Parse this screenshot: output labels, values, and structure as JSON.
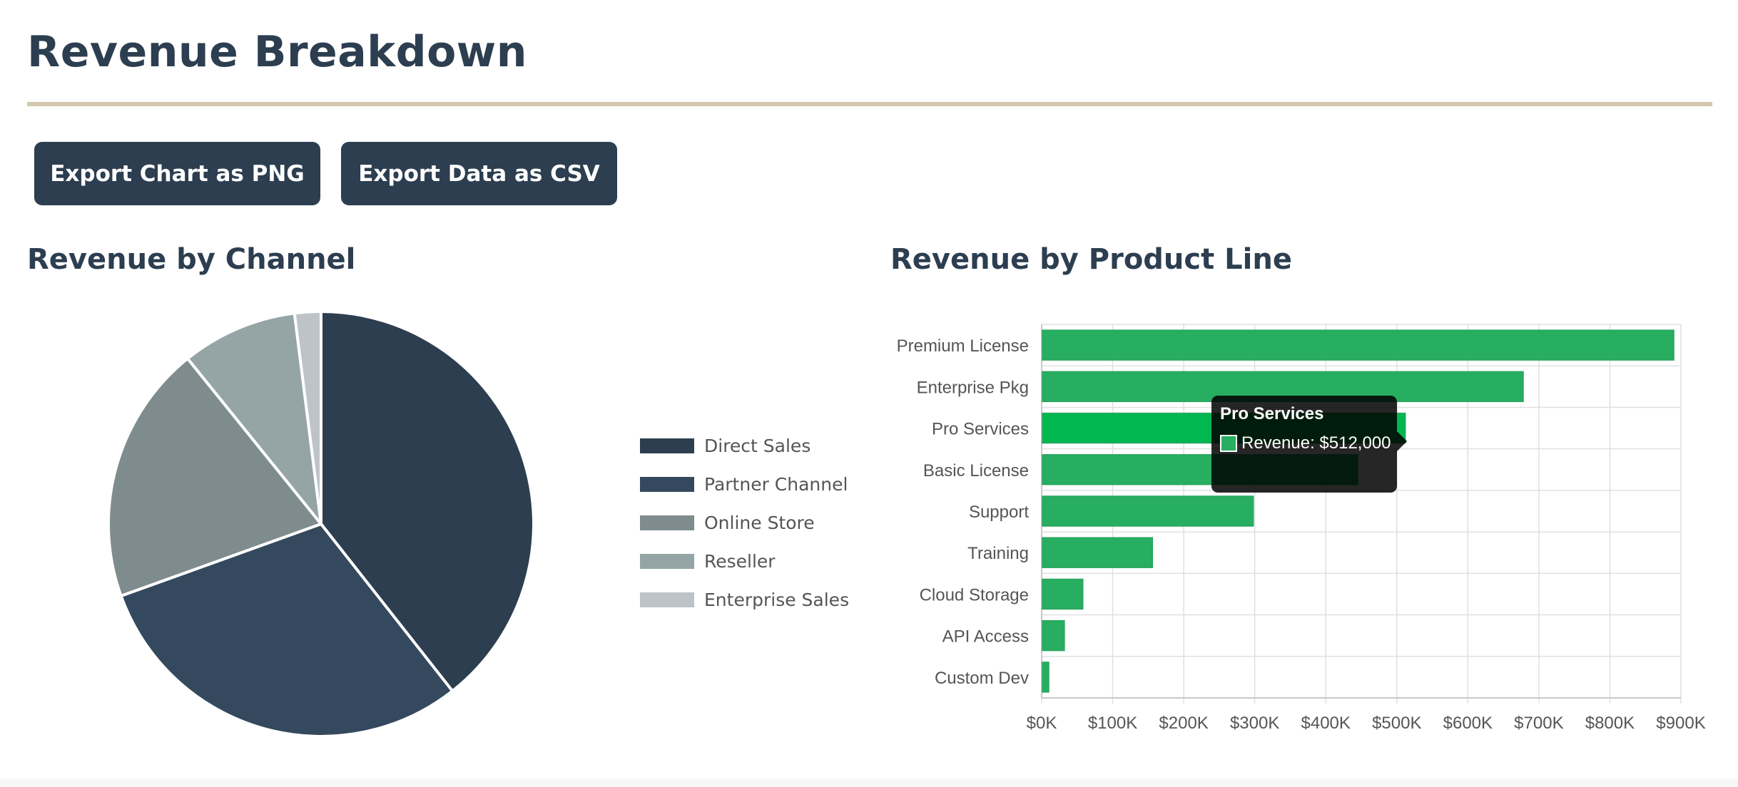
{
  "header": {
    "title": "Revenue Breakdown"
  },
  "toolbar": {
    "export_png_label": "Export Chart as PNG",
    "export_csv_label": "Export Data as CSV"
  },
  "colors": {
    "primary": "#2c3e50",
    "accent_rule": "#d4c8ae",
    "bar_green": "#27ae60",
    "bar_highlight": "#00b84f"
  },
  "chart_data": [
    {
      "type": "pie",
      "title": "Revenue by Channel",
      "categories": [
        "Direct Sales",
        "Partner Channel",
        "Online Store",
        "Reseller",
        "Enterprise Sales"
      ],
      "values": [
        39.4,
        30.1,
        19.7,
        8.8,
        2.0
      ],
      "colors": [
        "#2d3e50",
        "#34495e",
        "#7f8c8d",
        "#95a5a6",
        "#bdc3c7"
      ],
      "legend_position": "right"
    },
    {
      "type": "bar",
      "orientation": "horizontal",
      "title": "Revenue by Product Line",
      "categories": [
        "Premium License",
        "Enterprise Pkg",
        "Pro Services",
        "Basic License",
        "Support",
        "Training",
        "Cloud Storage",
        "API Access",
        "Custom Dev"
      ],
      "series": [
        {
          "name": "Revenue",
          "values": [
            890000,
            678000,
            512000,
            445000,
            298000,
            156000,
            58000,
            32000,
            10000
          ]
        }
      ],
      "xlim": [
        0,
        900000
      ],
      "xticks": [
        "$0K",
        "$100K",
        "$200K",
        "$300K",
        "$400K",
        "$500K",
        "$600K",
        "$700K",
        "$800K",
        "$900K"
      ],
      "grid": true,
      "highlighted_category": "Pro Services",
      "tooltip": {
        "title": "Pro Services",
        "text": "Revenue: $512,000"
      }
    }
  ]
}
